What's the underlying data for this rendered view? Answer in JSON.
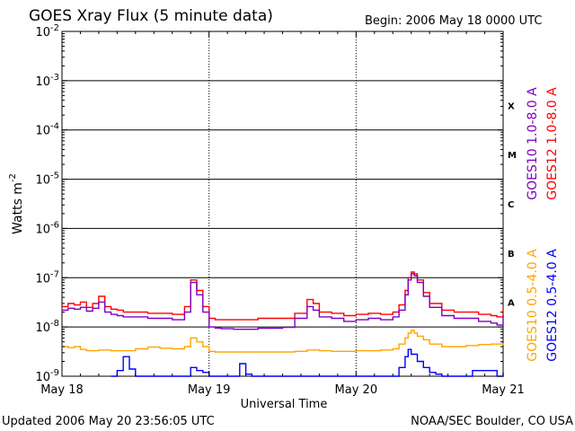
{
  "chart_data": {
    "type": "line",
    "title": "GOES Xray Flux (5 minute data)",
    "begin_label": "Begin:  2006 May 18 0000 UTC",
    "xlabel": "Universal Time",
    "ylabel": "Watts m",
    "ylabel_sup": "-2",
    "yscale": "log",
    "ylim": [
      1e-09,
      0.01
    ],
    "xlim": [
      0,
      72
    ],
    "x_unit": "hours since 2006 May 18 0000 UTC",
    "grid": true,
    "x_ticks": [
      {
        "value": 0,
        "label": "May 18"
      },
      {
        "value": 24,
        "label": "May 19"
      },
      {
        "value": 48,
        "label": "May 20"
      },
      {
        "value": 72,
        "label": "May 21"
      }
    ],
    "y_ticks": [
      {
        "exp": -9,
        "base": "10",
        "sup": "-9"
      },
      {
        "exp": -8,
        "base": "10",
        "sup": "-8"
      },
      {
        "exp": -7,
        "base": "10",
        "sup": "-7"
      },
      {
        "exp": -6,
        "base": "10",
        "sup": "-6"
      },
      {
        "exp": -5,
        "base": "10",
        "sup": "-5"
      },
      {
        "exp": -4,
        "base": "10",
        "sup": "-4"
      },
      {
        "exp": -3,
        "base": "10",
        "sup": "-3"
      },
      {
        "exp": -2,
        "base": "10",
        "sup": "-2"
      }
    ],
    "flare_classes": [
      {
        "label": "A",
        "exp": -7.5
      },
      {
        "label": "B",
        "exp": -6.5
      },
      {
        "label": "C",
        "exp": -5.5
      },
      {
        "label": "M",
        "exp": -4.5
      },
      {
        "label": "X",
        "exp": -3.5
      }
    ],
    "legend_right": [
      {
        "label": "GOES12 1.0-8.0 A",
        "color": "#ff0000"
      },
      {
        "label": "GOES10 1.0-8.0 A",
        "color": "#7f00bf"
      }
    ],
    "legend_bottom": [
      {
        "label": "GOES12 0.5-4.0 A",
        "color": "#0000ff"
      },
      {
        "label": "GOES10 0.5-4.0 A",
        "color": "#ffa500"
      }
    ],
    "series": [
      {
        "name": "GOES12 1.0-8.0 A",
        "color": "#ff0000",
        "x": [
          0,
          1,
          2,
          3,
          4,
          5,
          6,
          7,
          8,
          9,
          10,
          12,
          14,
          16,
          18,
          20,
          21,
          22,
          23,
          24,
          25,
          26,
          28,
          32,
          36,
          38,
          40,
          41,
          42,
          44,
          46,
          48,
          50,
          52,
          54,
          55,
          56,
          56.5,
          57,
          57.5,
          58,
          59,
          60,
          62,
          64,
          66,
          68,
          70,
          71,
          72
        ],
        "y": [
          2.6e-08,
          3e-08,
          2.8e-08,
          3.2e-08,
          2.5e-08,
          3e-08,
          4.2e-08,
          2.6e-08,
          2.3e-08,
          2.2e-08,
          2e-08,
          2e-08,
          1.9e-08,
          1.9e-08,
          1.8e-08,
          2.6e-08,
          9e-08,
          5.5e-08,
          2.6e-08,
          1.5e-08,
          1.4e-08,
          1.4e-08,
          1.4e-08,
          1.5e-08,
          1.5e-08,
          1.9e-08,
          3.6e-08,
          3e-08,
          2e-08,
          1.9e-08,
          1.7e-08,
          1.8e-08,
          1.9e-08,
          1.8e-08,
          2e-08,
          2.8e-08,
          5.5e-08,
          1e-07,
          1.3e-07,
          1.2e-07,
          9e-08,
          5e-08,
          3e-08,
          2.2e-08,
          2e-08,
          2e-08,
          1.8e-08,
          1.7e-08,
          1.6e-08,
          2.6e-08
        ]
      },
      {
        "name": "GOES10 1.0-8.0 A",
        "color": "#7f00bf",
        "x": [
          0,
          1,
          2,
          3,
          4,
          5,
          6,
          7,
          8,
          9,
          10,
          12,
          14,
          16,
          18,
          20,
          21,
          22,
          23,
          24,
          25,
          26,
          28,
          32,
          36,
          38,
          40,
          41,
          42,
          44,
          46,
          48,
          50,
          52,
          54,
          55,
          56,
          56.5,
          57,
          57.5,
          58,
          59,
          60,
          62,
          64,
          66,
          68,
          70,
          71,
          72
        ],
        "y": [
          2.2e-08,
          2.4e-08,
          2.3e-08,
          2.5e-08,
          2.1e-08,
          2.4e-08,
          3.2e-08,
          2e-08,
          1.8e-08,
          1.7e-08,
          1.6e-08,
          1.6e-08,
          1.5e-08,
          1.5e-08,
          1.4e-08,
          2e-08,
          8e-08,
          4.5e-08,
          2e-08,
          1e-08,
          9.5e-09,
          9.2e-09,
          9e-09,
          9.4e-09,
          9.8e-09,
          1.5e-08,
          2.6e-08,
          2.2e-08,
          1.6e-08,
          1.5e-08,
          1.3e-08,
          1.4e-08,
          1.5e-08,
          1.4e-08,
          1.6e-08,
          2.2e-08,
          4.5e-08,
          9e-08,
          1.2e-07,
          1.1e-07,
          8e-08,
          4.2e-08,
          2.5e-08,
          1.7e-08,
          1.5e-08,
          1.5e-08,
          1.3e-08,
          1.2e-08,
          1.1e-08,
          1.7e-08
        ]
      },
      {
        "name": "GOES10 0.5-4.0 A",
        "color": "#ffa500",
        "x": [
          0,
          1,
          2,
          3,
          4,
          6,
          8,
          10,
          12,
          14,
          16,
          18,
          20,
          21,
          22,
          23,
          24,
          25,
          26,
          28,
          32,
          36,
          38,
          40,
          42,
          44,
          46,
          48,
          50,
          52,
          54,
          55,
          56,
          56.5,
          57,
          57.5,
          58,
          59,
          60,
          62,
          64,
          66,
          68,
          70,
          72
        ],
        "y": [
          4e-09,
          3.8e-09,
          4e-09,
          3.5e-09,
          3.3e-09,
          3.4e-09,
          3.3e-09,
          3.3e-09,
          3.6e-09,
          3.9e-09,
          3.7e-09,
          3.6e-09,
          4e-09,
          6e-09,
          5e-09,
          4e-09,
          3.2e-09,
          3.1e-09,
          3.1e-09,
          3.1e-09,
          3.1e-09,
          3.1e-09,
          3.2e-09,
          3.4e-09,
          3.3e-09,
          3.2e-09,
          3.2e-09,
          3.3e-09,
          3.3e-09,
          3.4e-09,
          3.6e-09,
          4.5e-09,
          6e-09,
          7.5e-09,
          8.5e-09,
          7.5e-09,
          6.5e-09,
          5.5e-09,
          4.5e-09,
          4e-09,
          4e-09,
          4.2e-09,
          4.4e-09,
          4.5e-09,
          4.3e-09
        ]
      },
      {
        "name": "GOES12 0.5-4.0 A",
        "color": "#0000ff",
        "x": [
          8,
          9,
          10,
          11,
          12,
          20,
          21,
          22,
          23,
          24,
          28,
          29,
          30,
          31,
          54,
          55,
          56,
          56.5,
          57,
          58,
          59,
          60,
          61,
          62,
          66,
          67,
          71,
          72
        ],
        "y": [
          1e-09,
          1.3e-09,
          2.5e-09,
          1.4e-09,
          1e-09,
          1e-09,
          1.5e-09,
          1.3e-09,
          1.2e-09,
          1e-09,
          1e-09,
          1.8e-09,
          1.1e-09,
          1e-09,
          1e-09,
          1.5e-09,
          2.5e-09,
          3.5e-09,
          2.8e-09,
          2e-09,
          1.5e-09,
          1.2e-09,
          1.1e-09,
          1e-09,
          1e-09,
          1.3e-09,
          1e-09,
          1.2e-09
        ]
      }
    ]
  },
  "footer": {
    "updated": "Updated 2006 May 20 23:56:05 UTC",
    "credit": "NOAA/SEC Boulder, CO USA"
  }
}
